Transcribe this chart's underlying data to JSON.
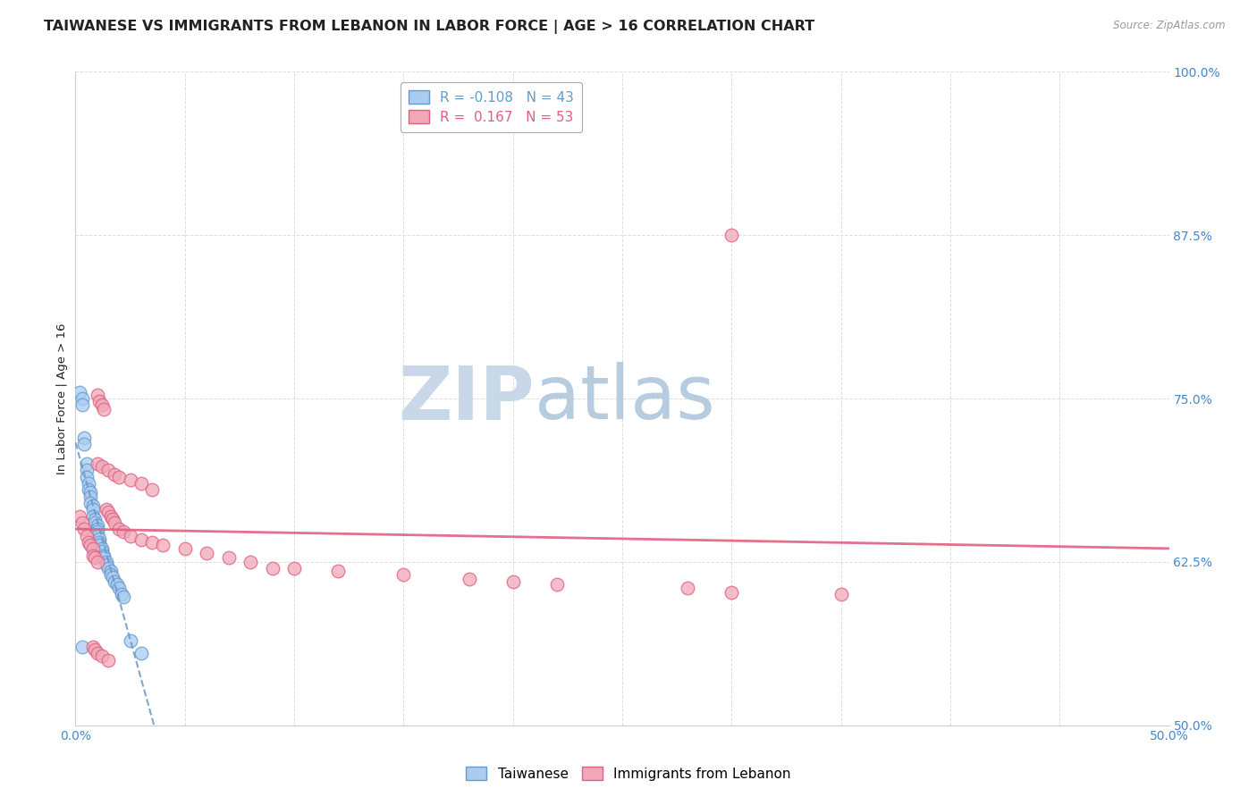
{
  "title": "TAIWANESE VS IMMIGRANTS FROM LEBANON IN LABOR FORCE | AGE > 16 CORRELATION CHART",
  "source": "Source: ZipAtlas.com",
  "ylabel": "In Labor Force | Age > 16",
  "legend_labels": [
    "Taiwanese",
    "Immigrants from Lebanon"
  ],
  "r_taiwanese": -0.108,
  "n_taiwanese": 43,
  "r_lebanon": 0.167,
  "n_lebanon": 53,
  "xlim": [
    0.0,
    0.5
  ],
  "ylim": [
    0.5,
    1.0
  ],
  "xticks": [
    0.0,
    0.05,
    0.1,
    0.15,
    0.2,
    0.25,
    0.3,
    0.35,
    0.4,
    0.45,
    0.5
  ],
  "yticks": [
    0.5,
    0.625,
    0.75,
    0.875,
    1.0
  ],
  "ytick_labels": [
    "50.0%",
    "62.5%",
    "75.0%",
    "87.5%",
    "100.0%"
  ],
  "xtick_labels": [
    "0.0%",
    "",
    "",
    "",
    "",
    "",
    "",
    "",
    "",
    "",
    "50.0%"
  ],
  "color_taiwanese": "#aaccf0",
  "color_lebanon": "#f0a8b8",
  "trendline_taiwanese": "#6699cc",
  "trendline_lebanon": "#e06080",
  "watermark_zip_color": "#c8d8e8",
  "watermark_atlas_color": "#b8cce0",
  "background_color": "#ffffff",
  "grid_color": "#dddddd",
  "title_color": "#222222",
  "axis_label_color": "#4488cc",
  "taiwanese_x": [
    0.002,
    0.003,
    0.003,
    0.004,
    0.004,
    0.005,
    0.005,
    0.005,
    0.006,
    0.006,
    0.007,
    0.007,
    0.007,
    0.008,
    0.008,
    0.008,
    0.009,
    0.009,
    0.01,
    0.01,
    0.01,
    0.01,
    0.011,
    0.011,
    0.011,
    0.012,
    0.012,
    0.013,
    0.013,
    0.014,
    0.014,
    0.015,
    0.016,
    0.016,
    0.017,
    0.018,
    0.019,
    0.02,
    0.021,
    0.022,
    0.003,
    0.025,
    0.03
  ],
  "taiwanese_y": [
    0.755,
    0.75,
    0.745,
    0.72,
    0.715,
    0.7,
    0.695,
    0.69,
    0.685,
    0.68,
    0.678,
    0.675,
    0.67,
    0.668,
    0.665,
    0.66,
    0.658,
    0.655,
    0.653,
    0.65,
    0.648,
    0.645,
    0.643,
    0.64,
    0.638,
    0.635,
    0.633,
    0.63,
    0.628,
    0.625,
    0.623,
    0.62,
    0.618,
    0.615,
    0.613,
    0.61,
    0.608,
    0.605,
    0.6,
    0.598,
    0.56,
    0.565,
    0.555
  ],
  "lebanon_x": [
    0.002,
    0.003,
    0.004,
    0.005,
    0.006,
    0.007,
    0.008,
    0.008,
    0.009,
    0.01,
    0.01,
    0.011,
    0.012,
    0.013,
    0.014,
    0.015,
    0.016,
    0.017,
    0.018,
    0.02,
    0.022,
    0.025,
    0.03,
    0.035,
    0.04,
    0.05,
    0.06,
    0.07,
    0.08,
    0.09,
    0.01,
    0.012,
    0.015,
    0.018,
    0.02,
    0.025,
    0.03,
    0.035,
    0.008,
    0.009,
    0.01,
    0.012,
    0.015,
    0.1,
    0.12,
    0.15,
    0.18,
    0.2,
    0.22,
    0.28,
    0.3,
    0.35,
    0.3
  ],
  "lebanon_y": [
    0.66,
    0.655,
    0.65,
    0.645,
    0.64,
    0.638,
    0.635,
    0.63,
    0.628,
    0.625,
    0.753,
    0.748,
    0.745,
    0.742,
    0.665,
    0.663,
    0.66,
    0.658,
    0.655,
    0.65,
    0.648,
    0.645,
    0.642,
    0.64,
    0.638,
    0.635,
    0.632,
    0.628,
    0.625,
    0.62,
    0.7,
    0.698,
    0.695,
    0.692,
    0.69,
    0.688,
    0.685,
    0.68,
    0.56,
    0.558,
    0.555,
    0.553,
    0.55,
    0.62,
    0.618,
    0.615,
    0.612,
    0.61,
    0.608,
    0.605,
    0.602,
    0.6,
    0.875
  ]
}
